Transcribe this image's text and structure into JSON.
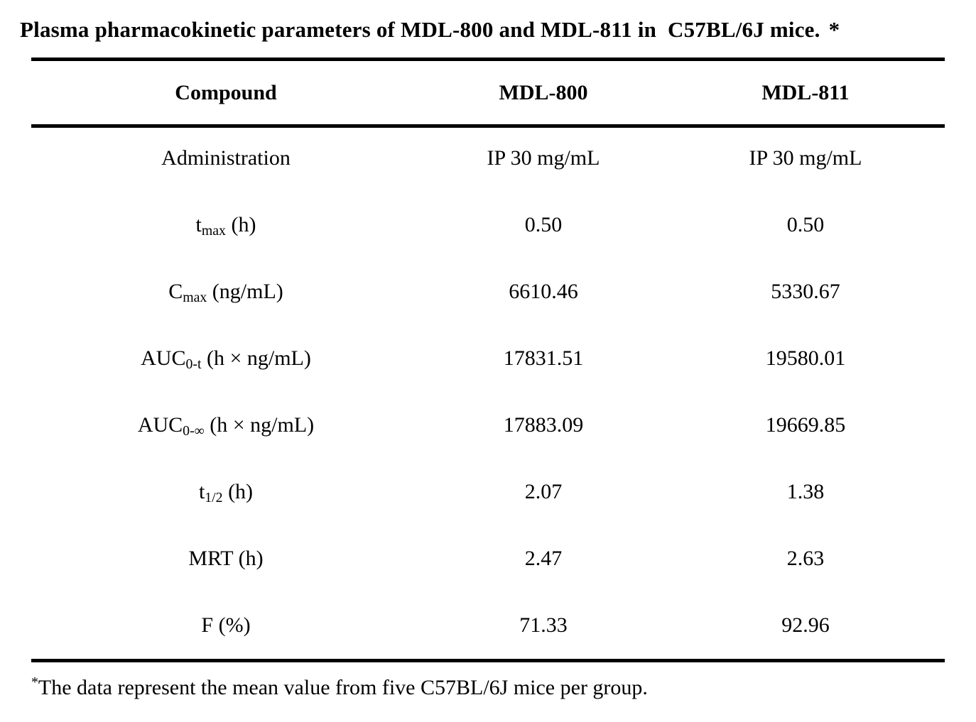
{
  "title": {
    "text": "Plasma pharmacokinetic parameters of MDL-800 and MDL-811 in  C57BL/6J mice.",
    "marker": "*"
  },
  "table": {
    "header": {
      "compound": "Compound",
      "mdl800": "MDL-800",
      "mdl811": "MDL-811"
    },
    "rows": [
      {
        "label": {
          "base": "Administration",
          "sub": "",
          "suffix": ""
        },
        "mdl800": "IP 30 mg/mL",
        "mdl811": "IP 30 mg/mL"
      },
      {
        "label": {
          "base": "t",
          "sub": "max",
          "suffix": " (h)"
        },
        "mdl800": "0.50",
        "mdl811": "0.50"
      },
      {
        "label": {
          "base": "C",
          "sub": "max",
          "suffix": " (ng/mL)"
        },
        "mdl800": "6610.46",
        "mdl811": "5330.67"
      },
      {
        "label": {
          "base": "AUC",
          "sub": "0-t",
          "suffix": " (h × ng/mL)"
        },
        "mdl800": "17831.51",
        "mdl811": "19580.01"
      },
      {
        "label": {
          "base": "AUC",
          "sub": "0-∞",
          "suffix": " (h × ng/mL)"
        },
        "mdl800": "17883.09",
        "mdl811": "19669.85"
      },
      {
        "label": {
          "base": "t",
          "sub": "1/2",
          "suffix": " (h)"
        },
        "mdl800": "2.07",
        "mdl811": "1.38"
      },
      {
        "label": {
          "base": "MRT (h)",
          "sub": "",
          "suffix": ""
        },
        "mdl800": "2.47",
        "mdl811": "2.63"
      },
      {
        "label": {
          "base": "F (%)",
          "sub": "",
          "suffix": ""
        },
        "mdl800": "71.33",
        "mdl811": "92.96"
      }
    ]
  },
  "footnote": {
    "marker": "*",
    "text": "The data represent the mean value from five C57BL/6J mice per group."
  },
  "colors": {
    "text": "#000000",
    "background": "#ffffff",
    "rule": "#000000"
  }
}
